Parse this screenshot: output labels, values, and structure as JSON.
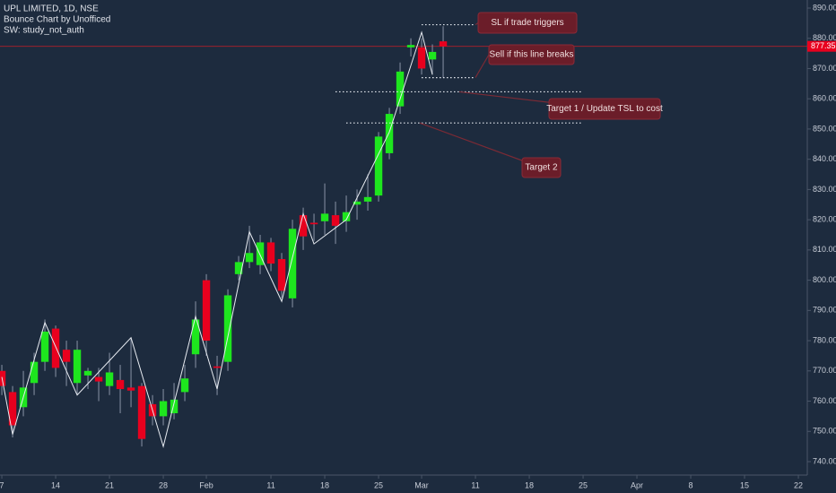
{
  "chart_data": {
    "type": "candlestick",
    "title": "UPL LIMITED, 1D, NSE",
    "subtitle": "Bounce Chart by Unofficed",
    "note": "SW: study_not_auth",
    "categories": [
      null,
      null,
      null,
      null,
      null,
      null,
      null,
      null,
      null,
      null,
      null,
      null,
      null,
      null,
      null,
      null,
      null,
      null,
      null,
      null,
      null,
      null,
      null,
      null,
      null,
      null,
      null,
      null,
      null,
      null,
      null,
      null,
      null,
      null,
      null,
      null,
      null,
      null,
      null,
      null,
      null,
      null
    ],
    "open": [
      770,
      763,
      758,
      766,
      773,
      784,
      777,
      766,
      768.5,
      768,
      765,
      767,
      764.5,
      765,
      759,
      755,
      756,
      763,
      775.5,
      800,
      771.5,
      773,
      802,
      806,
      805,
      812.5,
      807,
      794,
      821.5,
      819,
      819.5,
      821.5,
      819.5,
      825,
      826,
      828,
      842,
      857.5,
      877,
      877,
      873,
      879
    ],
    "high": [
      772,
      765,
      770,
      776,
      787,
      785,
      780,
      780,
      771,
      771,
      776,
      772,
      781,
      766,
      762,
      764,
      766,
      772,
      793,
      802,
      775,
      797,
      808,
      818,
      815,
      814,
      809,
      820,
      824,
      822,
      832,
      826,
      828,
      830,
      835,
      849,
      857,
      872,
      880,
      880,
      878,
      884
    ],
    "low": [
      762,
      748,
      755,
      762,
      770,
      768,
      765,
      762,
      764,
      760,
      762,
      756,
      758,
      745,
      752,
      752,
      754,
      760,
      771,
      775,
      762,
      770,
      800,
      804,
      802,
      803,
      794,
      791,
      810,
      813,
      815,
      812,
      816,
      820,
      823,
      826,
      840,
      855,
      874,
      868,
      868,
      867
    ],
    "close": [
      765,
      752,
      764.5,
      773,
      783,
      771,
      773,
      777,
      770,
      766.5,
      769.5,
      764,
      763.5,
      747.5,
      755,
      760,
      760.5,
      767.5,
      787,
      780,
      771,
      795,
      806,
      809,
      812.5,
      805.5,
      796.5,
      817,
      814.5,
      818.5,
      822,
      818,
      822.5,
      826,
      827.5,
      847.5,
      855,
      869,
      877.8,
      870,
      875.5,
      877.3
    ],
    "up_color": "#1ee61e",
    "down_color": "#e8001e",
    "wick_color": "#8a94a6",
    "zigzag": {
      "x": [
        0,
        1,
        4,
        7,
        12,
        15,
        18,
        20,
        23,
        26,
        28,
        29,
        32,
        36,
        39,
        40
      ],
      "values": [
        768,
        749,
        786,
        762,
        781,
        745,
        788,
        764,
        816,
        793,
        822,
        812,
        820,
        849,
        882,
        868
      ],
      "color": "#e8ecf2"
    },
    "last_price": {
      "value": 877.35,
      "label": "877.35"
    },
    "levels": [
      {
        "value": 884.5,
        "from": 39,
        "to": 44,
        "text": "SL if trade triggers"
      },
      {
        "value": 867,
        "from": 39,
        "to": 44,
        "text": "Sell if this line breaks"
      },
      {
        "value": 862.3,
        "from": 31,
        "to": 54,
        "text": "Target 1 / Update TSL to cost"
      },
      {
        "value": 852,
        "from": 32,
        "to": 54,
        "text": "Target 2"
      }
    ],
    "xlim": [
      -0.17,
      74.83
    ],
    "xticks": [
      {
        "value": 0,
        "label": "7"
      },
      {
        "value": 5,
        "label": "14"
      },
      {
        "value": 10,
        "label": "21"
      },
      {
        "value": 15,
        "label": "28"
      },
      {
        "value": 19,
        "label": "Feb"
      },
      {
        "value": 25,
        "label": "11"
      },
      {
        "value": 30,
        "label": "18"
      },
      {
        "value": 35,
        "label": "25"
      },
      {
        "value": 39,
        "label": "Mar"
      },
      {
        "value": 44,
        "label": "11"
      },
      {
        "value": 49,
        "label": "18"
      },
      {
        "value": 54,
        "label": "25"
      },
      {
        "value": 59,
        "label": "Apr"
      },
      {
        "value": 64,
        "label": "8"
      },
      {
        "value": 69,
        "label": "15"
      },
      {
        "value": 74,
        "label": "22"
      }
    ],
    "ylim": [
      735.55,
      892.67
    ],
    "yticks": [
      {
        "value": 740,
        "label": "740.00"
      },
      {
        "value": 750,
        "label": "750.00"
      },
      {
        "value": 760,
        "label": "760.00"
      },
      {
        "value": 770,
        "label": "770.00"
      },
      {
        "value": 780,
        "label": "780.00"
      },
      {
        "value": 790,
        "label": "790.00"
      },
      {
        "value": 800,
        "label": "800.00"
      },
      {
        "value": 810,
        "label": "810.00"
      },
      {
        "value": 820,
        "label": "820.00"
      },
      {
        "value": 830,
        "label": "830.00"
      },
      {
        "value": 840,
        "label": "840.00"
      },
      {
        "value": 850,
        "label": "850.00"
      },
      {
        "value": 860,
        "label": "860.00"
      },
      {
        "value": 870,
        "label": "870.00"
      },
      {
        "value": 880,
        "label": "880.00"
      },
      {
        "value": 890,
        "label": "890.00"
      }
    ]
  }
}
